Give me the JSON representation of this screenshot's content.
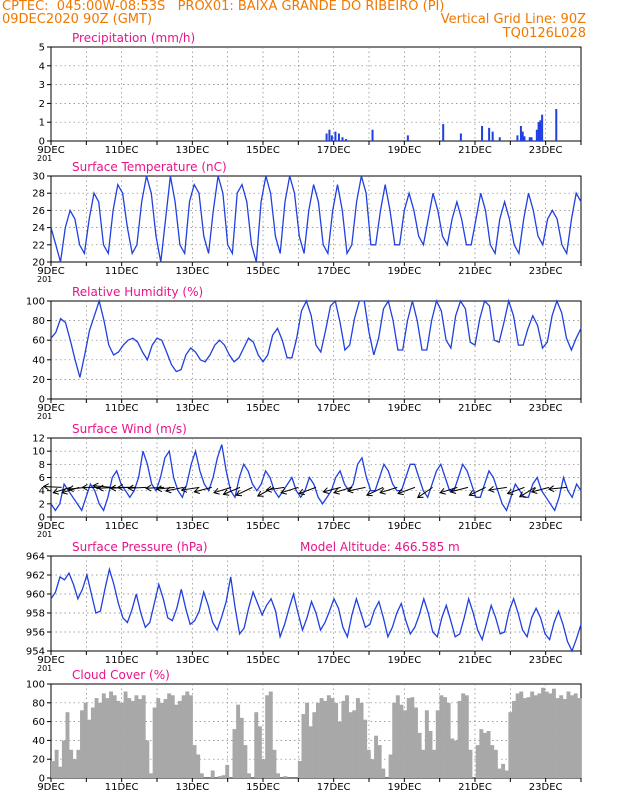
{
  "header": {
    "line1": "CPTEC:  045:00W-08:53S   PROX01: BAIXA GRANDE DO RIBEIRO (PI)",
    "date": "09DEC2020 90Z (GMT)",
    "grid_note": "Vertical Grid Line: 90Z",
    "code": "TQ0126L028",
    "color": "#f07800"
  },
  "colors": {
    "title": "#e8138a",
    "line": "#2040e0",
    "bar": "#2040e0",
    "cloud": "#a8a8a8",
    "grid": "#808080"
  },
  "x_ticks": [
    "9DEC",
    "11DEC",
    "13DEC",
    "15DEC",
    "17DEC",
    "19DEC",
    "21DEC",
    "23DEC"
  ],
  "stub_label": "201",
  "model_altitude": "Model Altitude: 466.585 m",
  "chart_data": [
    {
      "type": "bar",
      "title": "Precipitation (mm/h)",
      "ylim": [
        0,
        5
      ],
      "y_ticks": [
        "0",
        "1",
        "2",
        "3",
        "4",
        "5"
      ],
      "x_unit": "days since 9DEC",
      "points": [
        [
          7.8,
          0.4
        ],
        [
          7.88,
          0.6
        ],
        [
          7.95,
          0.3
        ],
        [
          8.05,
          0.5
        ],
        [
          8.15,
          0.4
        ],
        [
          8.25,
          0.2
        ],
        [
          8.35,
          0.1
        ],
        [
          9.1,
          0.6
        ],
        [
          10.1,
          0.3
        ],
        [
          11.1,
          0.9
        ],
        [
          11.6,
          0.4
        ],
        [
          12.2,
          0.8
        ],
        [
          12.4,
          0.7
        ],
        [
          12.5,
          0.5
        ],
        [
          12.7,
          0.2
        ],
        [
          13.2,
          0.3
        ],
        [
          13.3,
          0.8
        ],
        [
          13.35,
          0.5
        ],
        [
          13.4,
          0.25
        ],
        [
          13.55,
          0.2
        ],
        [
          13.6,
          0.2
        ],
        [
          13.75,
          0.6
        ],
        [
          13.8,
          1.0
        ],
        [
          13.85,
          1.1
        ],
        [
          13.9,
          1.4
        ],
        [
          14.3,
          1.7
        ]
      ]
    },
    {
      "type": "line",
      "title": "Surface Temperature (nC)",
      "ylim": [
        20,
        30
      ],
      "y_ticks": [
        "20",
        "22",
        "24",
        "26",
        "28",
        "30"
      ],
      "values": [
        24,
        22,
        20,
        24,
        26,
        25,
        22,
        21,
        25,
        28,
        27,
        22,
        21,
        26,
        29,
        28,
        24,
        21,
        22,
        27,
        30,
        28,
        23,
        20,
        25,
        30,
        27,
        22,
        21,
        27,
        29,
        28,
        23,
        21,
        26,
        30,
        28,
        22,
        21,
        28,
        29,
        27,
        22,
        20,
        27,
        30,
        28,
        23,
        21,
        27,
        30,
        28,
        23,
        21,
        26,
        29,
        27,
        22,
        21,
        26,
        29,
        26,
        21,
        22,
        27,
        30,
        28,
        22,
        22,
        26,
        29,
        26,
        22,
        22,
        26,
        28,
        26,
        23,
        22,
        25,
        28,
        26,
        23,
        22,
        25,
        27,
        25,
        22,
        22,
        25,
        28,
        26,
        22,
        21,
        25,
        27,
        25,
        22,
        21,
        25,
        28,
        26,
        23,
        22,
        25,
        26,
        25,
        22,
        21,
        25,
        28,
        27
      ]
    },
    {
      "type": "line",
      "title": "Relative Humidity (%)",
      "ylim": [
        0,
        100
      ],
      "y_ticks": [
        "0",
        "20",
        "40",
        "60",
        "80",
        "100"
      ],
      "values": [
        62,
        68,
        82,
        78,
        60,
        40,
        22,
        45,
        70,
        85,
        100,
        80,
        55,
        45,
        48,
        55,
        60,
        62,
        58,
        48,
        40,
        55,
        62,
        60,
        48,
        35,
        28,
        30,
        45,
        52,
        48,
        40,
        38,
        45,
        55,
        60,
        55,
        45,
        38,
        42,
        52,
        62,
        58,
        45,
        38,
        45,
        65,
        72,
        60,
        42,
        42,
        62,
        90,
        100,
        85,
        55,
        48,
        70,
        95,
        100,
        78,
        50,
        55,
        82,
        100,
        100,
        68,
        45,
        62,
        92,
        100,
        80,
        50,
        50,
        80,
        100,
        80,
        50,
        50,
        80,
        100,
        90,
        60,
        52,
        85,
        100,
        92,
        58,
        55,
        82,
        100,
        95,
        60,
        58,
        78,
        100,
        85,
        55,
        55,
        72,
        85,
        75,
        52,
        58,
        85,
        100,
        88,
        62,
        50,
        62,
        72
      ]
    },
    {
      "type": "line",
      "title": "Surface Wind (m/s)",
      "ylim": [
        0,
        12
      ],
      "y_ticks": [
        "0",
        "2",
        "4",
        "6",
        "8",
        "10",
        "12"
      ],
      "values": [
        2,
        1,
        2,
        5,
        4,
        3,
        2,
        1,
        3,
        5,
        4,
        2,
        1,
        3,
        6,
        7,
        5,
        4,
        3,
        4,
        6,
        10,
        8,
        5,
        4,
        6,
        9,
        10,
        6,
        4,
        3,
        5,
        8,
        10,
        7,
        5,
        4,
        6,
        9,
        11,
        7,
        4,
        3,
        6,
        8,
        7,
        5,
        4,
        5,
        7,
        6,
        4,
        3,
        4,
        5,
        6,
        4,
        3,
        4,
        6,
        5,
        3,
        2,
        3,
        4,
        6,
        7,
        5,
        4,
        5,
        8,
        9,
        6,
        4,
        4,
        6,
        8,
        7,
        5,
        4,
        4,
        6,
        8,
        8,
        6,
        4,
        3,
        5,
        7,
        8,
        6,
        4,
        4,
        6,
        8,
        7,
        5,
        3,
        3,
        5,
        7,
        6,
        4,
        2,
        1,
        3,
        5,
        4,
        3,
        3,
        5,
        6,
        4,
        3,
        2,
        1,
        3,
        6,
        4,
        3,
        5,
        4
      ]
    },
    {
      "type": "line",
      "title": "Surface Pressure (hPa)",
      "ylim": [
        954,
        964
      ],
      "y_ticks": [
        "954",
        "956",
        "958",
        "960",
        "962",
        "964"
      ],
      "values": [
        959.5,
        960.2,
        961.8,
        961.5,
        962.2,
        961,
        959.5,
        960.5,
        962,
        960,
        958,
        958.2,
        960.5,
        962.6,
        961,
        959,
        957.5,
        957,
        958.3,
        960,
        958,
        956.5,
        957,
        959,
        961,
        959.5,
        957.5,
        957.2,
        958.5,
        960.5,
        958.5,
        956.8,
        957.2,
        958.2,
        960.2,
        958.8,
        957,
        956.2,
        957.6,
        959.2,
        961.8,
        958.5,
        955.8,
        956.4,
        958.5,
        960.2,
        959,
        957.8,
        958.8,
        959.5,
        958.2,
        955.5,
        956.8,
        958.5,
        960,
        958,
        956.2,
        957.5,
        959.2,
        958,
        956.2,
        957,
        958.2,
        959.5,
        958.5,
        956.5,
        955.5,
        957.8,
        959.5,
        958,
        956.5,
        956.8,
        958.3,
        959.2,
        957.5,
        955.5,
        956.5,
        958,
        959,
        957.2,
        955.8,
        956.5,
        957.8,
        959.5,
        958,
        956,
        955.5,
        957.5,
        958.8,
        957.2,
        955.5,
        955.8,
        957.5,
        959.5,
        958,
        956.2,
        955.2,
        957,
        958.8,
        957.5,
        955.8,
        956,
        958.2,
        959.5,
        958,
        956.2,
        955.5,
        957.5,
        958.5,
        957.5,
        955.8,
        955.2,
        957,
        958.2,
        956.8,
        955,
        954,
        955.3,
        956.8
      ]
    },
    {
      "type": "bar",
      "title": "Cloud Cover (%)",
      "ylim": [
        0,
        100
      ],
      "y_ticks": [
        "0",
        "20",
        "40",
        "60",
        "80",
        "100"
      ],
      "values": [
        18,
        30,
        12,
        40,
        70,
        30,
        20,
        30,
        72,
        80,
        62,
        75,
        85,
        80,
        90,
        85,
        92,
        88,
        82,
        80,
        92,
        85,
        82,
        88,
        84,
        88,
        40,
        5,
        75,
        85,
        80,
        84,
        90,
        88,
        78,
        82,
        88,
        92,
        88,
        35,
        25,
        5,
        0,
        0,
        8,
        0,
        2,
        3,
        14,
        0,
        52,
        78,
        64,
        35,
        5,
        0,
        70,
        55,
        20,
        88,
        92,
        30,
        5,
        0,
        2,
        0,
        0,
        0,
        18,
        68,
        80,
        55,
        70,
        80,
        85,
        82,
        88,
        85,
        80,
        60,
        82,
        88,
        70,
        72,
        85,
        80,
        62,
        30,
        20,
        45,
        35,
        10,
        0,
        25,
        80,
        88,
        78,
        72,
        85,
        86,
        75,
        48,
        30,
        72,
        50,
        30,
        72,
        88,
        86,
        80,
        42,
        40,
        82,
        90,
        88,
        30,
        0,
        35,
        52,
        48,
        50,
        35,
        30,
        10,
        15,
        8,
        70,
        82,
        90,
        92,
        85,
        86,
        92,
        88,
        90,
        96,
        92,
        90,
        95,
        85,
        88,
        84,
        92,
        88,
        90,
        85
      ]
    }
  ],
  "wind_arrows": [
    [
      0.3,
      -0.05
    ],
    [
      0.55,
      0.3
    ],
    [
      0.8,
      0.3
    ],
    [
      1.0,
      0.1
    ],
    [
      1.4,
      0.0
    ],
    [
      1.7,
      -0.1
    ],
    [
      1.85,
      0.05
    ],
    [
      2.2,
      0.05
    ],
    [
      2.4,
      0.0
    ],
    [
      2.7,
      0.05
    ],
    [
      3.2,
      0.05
    ],
    [
      3.5,
      0.1
    ],
    [
      3.75,
      0.2
    ],
    [
      4.2,
      0.15
    ],
    [
      4.55,
      0.25
    ],
    [
      5.1,
      0.3
    ],
    [
      5.35,
      0.4
    ],
    [
      5.7,
      0.45
    ],
    [
      6.3,
      0.5
    ],
    [
      6.6,
      0.15
    ],
    [
      7.0,
      0.3
    ],
    [
      7.5,
      0.35
    ],
    [
      8.2,
      0.25
    ],
    [
      8.5,
      0.3
    ],
    [
      8.9,
      0.2
    ],
    [
      9.4,
      0.45
    ],
    [
      9.8,
      0.3
    ],
    [
      10.3,
      0.35
    ],
    [
      10.8,
      0.6
    ],
    [
      11.5,
      0.3
    ],
    [
      11.8,
      0.25
    ],
    [
      12.3,
      0.45
    ],
    [
      12.9,
      0.15
    ],
    [
      13.4,
      0.35
    ],
    [
      13.7,
      0.55
    ],
    [
      14.1,
      0.25
    ],
    [
      14.6,
      0.1
    ]
  ]
}
